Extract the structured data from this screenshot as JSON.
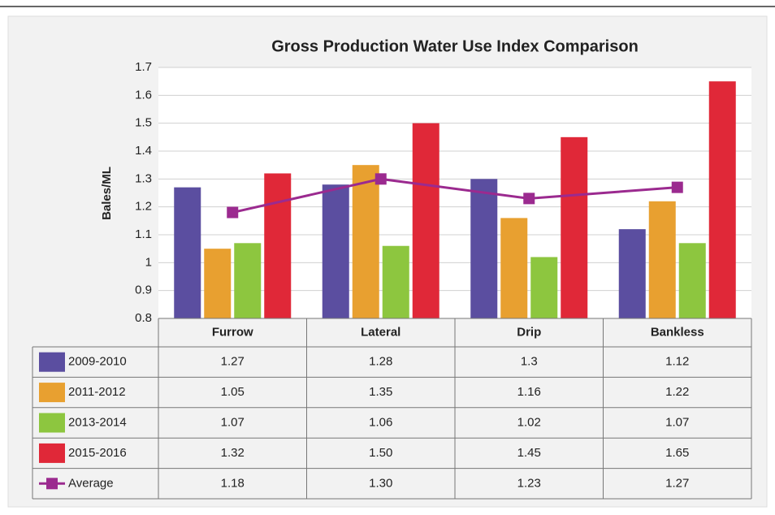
{
  "chart_data": {
    "type": "bar",
    "title": "Gross Production Water Use Index Comparison",
    "y_axis_label": "Bales/ML",
    "categories": [
      "Furrow",
      "Lateral",
      "Drip",
      "Bankless"
    ],
    "ylim": [
      0.8,
      1.7
    ],
    "yticks": [
      0.8,
      0.9,
      1,
      1.1,
      1.2,
      1.3,
      1.4,
      1.5,
      1.6,
      1.7
    ],
    "grid": true,
    "series": [
      {
        "name": "2009-2010",
        "type": "bar",
        "color": "#5b4ea0",
        "values": [
          1.27,
          1.28,
          1.3,
          1.12
        ],
        "value_labels": [
          "1.27",
          "1.28",
          "1.3",
          "1.12"
        ]
      },
      {
        "name": "2011-2012",
        "type": "bar",
        "color": "#e8a030",
        "values": [
          1.05,
          1.35,
          1.16,
          1.22
        ],
        "value_labels": [
          "1.05",
          "1.35",
          "1.16",
          "1.22"
        ]
      },
      {
        "name": "2013-2014",
        "type": "bar",
        "color": "#8dc63f",
        "values": [
          1.07,
          1.06,
          1.02,
          1.07
        ],
        "value_labels": [
          "1.07",
          "1.06",
          "1.02",
          "1.07"
        ]
      },
      {
        "name": "2015-2016",
        "type": "bar",
        "color": "#e02838",
        "values": [
          1.32,
          1.5,
          1.45,
          1.65
        ],
        "value_labels": [
          "1.32",
          "1.50",
          "1.45",
          "1.65"
        ]
      },
      {
        "name": "Average",
        "type": "line",
        "color": "#9b2a8f",
        "values": [
          1.18,
          1.3,
          1.23,
          1.27
        ],
        "value_labels": [
          "1.18",
          "1.30",
          "1.23",
          "1.27"
        ]
      }
    ]
  }
}
